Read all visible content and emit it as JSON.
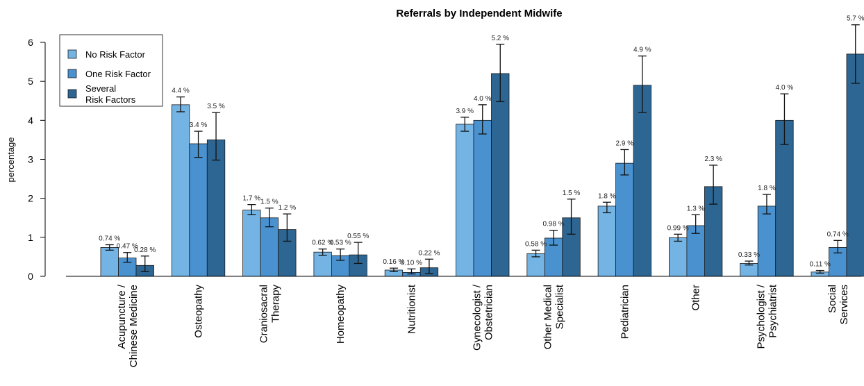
{
  "chart_data": {
    "type": "bar",
    "title": "Referrals by Independent Midwife",
    "xlabel": "",
    "ylabel": "percentage",
    "ylim": [
      0,
      6.3
    ],
    "yticks": [
      0,
      1,
      2,
      3,
      4,
      5,
      6
    ],
    "categories": [
      [
        "Acupuncture /",
        "Chinese Medicine"
      ],
      [
        "Osteopathy"
      ],
      [
        "Craniosacral",
        "Therapy"
      ],
      [
        "Homeopathy"
      ],
      [
        "Nutritionist"
      ],
      [
        "Gynecologist /",
        "Obstetrician"
      ],
      [
        "Other Medical",
        "Specialist"
      ],
      [
        "Pediatrician"
      ],
      [
        "Other"
      ],
      [
        "Psychologist /",
        "Psychiatrist"
      ],
      [
        "Social",
        "Services"
      ]
    ],
    "series": [
      {
        "name": "No Risk Factor",
        "color": "#74b4e4",
        "values": [
          0.74,
          4.4,
          1.7,
          0.62,
          0.16,
          3.9,
          0.58,
          1.8,
          0.99,
          0.33,
          0.11
        ],
        "labels": [
          "0.74 %",
          "4.4 %",
          "1.7 %",
          "0.62 %",
          "0.16 %",
          "3.9 %",
          "0.58 %",
          "1.8 %",
          "0.99 %",
          "0.33 %",
          "0.11 %"
        ],
        "err_low": [
          0.67,
          4.22,
          1.58,
          0.54,
          0.12,
          3.72,
          0.5,
          1.63,
          0.9,
          0.29,
          0.08
        ],
        "err_high": [
          0.81,
          4.6,
          1.84,
          0.7,
          0.21,
          4.08,
          0.67,
          1.9,
          1.08,
          0.39,
          0.15
        ]
      },
      {
        "name": "One Risk Factor",
        "color": "#4a91cf",
        "values": [
          0.47,
          3.4,
          1.5,
          0.53,
          0.1,
          4.0,
          0.98,
          2.9,
          1.3,
          1.8,
          0.74
        ],
        "labels": [
          "0.47 %",
          "3.4 %",
          "1.5 %",
          "0.53 %",
          "0.10 %",
          "4.0 %",
          "0.98 %",
          "2.9 %",
          "1.3 %",
          "1.8 %",
          "0.74 %"
        ],
        "err_low": [
          0.36,
          3.05,
          1.27,
          0.41,
          0.06,
          3.65,
          0.8,
          2.6,
          1.1,
          1.6,
          0.6
        ],
        "err_high": [
          0.61,
          3.72,
          1.75,
          0.7,
          0.19,
          4.4,
          1.18,
          3.25,
          1.58,
          2.1,
          0.92
        ]
      },
      {
        "name": "Several Risk Factors",
        "color": "#2d6692",
        "values": [
          0.28,
          3.5,
          1.2,
          0.55,
          0.22,
          5.2,
          1.5,
          4.9,
          2.3,
          4.0,
          5.7
        ],
        "labels": [
          "0.28 %",
          "3.5 %",
          "1.2 %",
          "0.55 %",
          "0.22 %",
          "5.2 %",
          "1.5 %",
          "4.9 %",
          "2.3 %",
          "4.0 %",
          "5.7 %"
        ],
        "err_low": [
          0.12,
          2.98,
          0.9,
          0.33,
          0.07,
          4.48,
          1.08,
          4.2,
          1.85,
          3.38,
          4.95
        ],
        "err_high": [
          0.52,
          4.2,
          1.6,
          0.87,
          0.44,
          5.95,
          1.98,
          5.65,
          2.85,
          4.68,
          6.45
        ]
      }
    ],
    "error_bars": true,
    "grid": false,
    "legend": {
      "position": "top-left",
      "entries": [
        [
          "No Risk Factor"
        ],
        [
          "One Risk Factor"
        ],
        [
          "Several",
          "Risk Factors"
        ]
      ]
    }
  }
}
